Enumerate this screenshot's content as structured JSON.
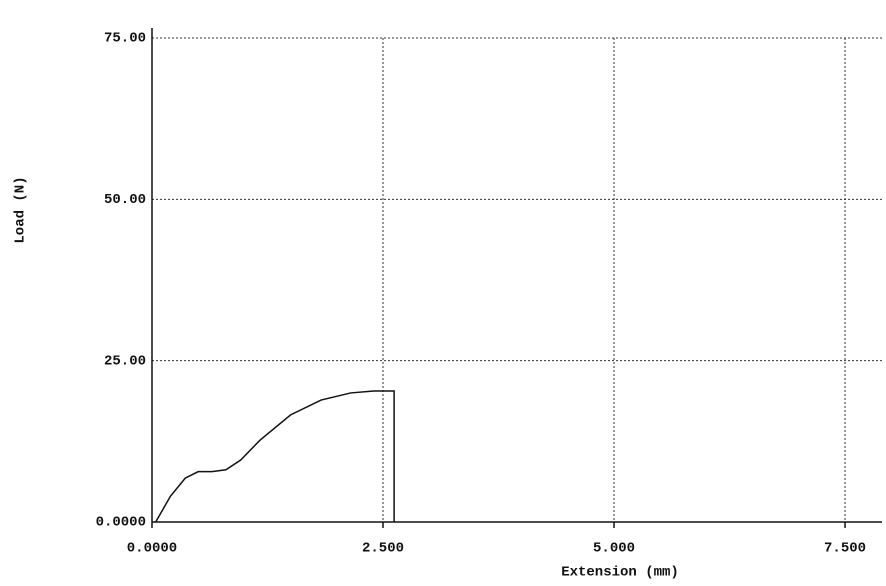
{
  "chart_data": {
    "type": "line",
    "x_label": "Extension (mm)",
    "y_label": "Load (N)",
    "x": [
      0.04,
      0.2,
      0.36,
      0.5,
      0.65,
      0.8,
      0.96,
      1.17,
      1.5,
      1.83,
      2.15,
      2.4,
      2.62,
      2.62
    ],
    "series": [
      {
        "color": "#111111",
        "values": [
          0,
          4,
          6.8,
          7.8,
          7.8,
          8.1,
          9.6,
          12.7,
          16.6,
          18.9,
          20,
          20.3,
          20.3,
          0
        ]
      }
    ],
    "xlim": [
      0,
      7.9
    ],
    "ylim": [
      0,
      75
    ],
    "xticks": [
      {
        "value": 0,
        "label": "0.0000"
      },
      {
        "value": 2.5,
        "label": "2.500"
      },
      {
        "value": 5,
        "label": "5.000"
      },
      {
        "value": 7.5,
        "label": "7.500"
      }
    ],
    "yticks": [
      {
        "value": 0,
        "label": "0.0000"
      },
      {
        "value": 25,
        "label": "25.00"
      },
      {
        "value": 50,
        "label": "50.00"
      },
      {
        "value": 75,
        "label": "75.00"
      }
    ],
    "grid": true
  }
}
